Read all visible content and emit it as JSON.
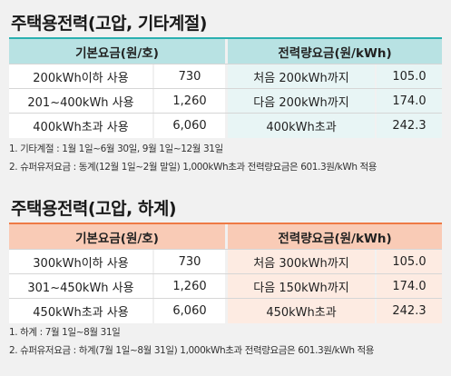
{
  "sections": [
    {
      "title": "주택용전력(고압, 기타계절)",
      "headers": {
        "basic": "기본요금(원/호)",
        "energy": "전력량요금(원/kWh)"
      },
      "rows": [
        {
          "basic_label": "200kWh이하 사용",
          "basic_value": "730",
          "energy_label": "처음 200kWh까지",
          "energy_value": "105.0"
        },
        {
          "basic_label": "201~400kWh 사용",
          "basic_value": "1,260",
          "energy_label": "다음 200kWh까지",
          "energy_value": "174.0"
        },
        {
          "basic_label": "400kWh초과 사용",
          "basic_value": "6,060",
          "energy_label": "400kWh초과",
          "energy_value": "242.3"
        }
      ],
      "notes": [
        "1. 기타계절 : 1월 1일~6월 30일, 9월 1일~12월 31일",
        "2. 슈퍼유저요금 : 동계(12월 1일~2월 말일) 1,000kWh초과 전력량요금은 601.3원/kWh 적용"
      ]
    },
    {
      "title": "주택용전력(고압, 하계)",
      "headers": {
        "basic": "기본요금(원/호)",
        "energy": "전력량요금(원/kWh)"
      },
      "rows": [
        {
          "basic_label": "300kWh이하 사용",
          "basic_value": "730",
          "energy_label": "처음 300kWh까지",
          "energy_value": "105.0"
        },
        {
          "basic_label": "301~450kWh 사용",
          "basic_value": "1,260",
          "energy_label": "다음 150kWh까지",
          "energy_value": "174.0"
        },
        {
          "basic_label": "450kWh초과 사용",
          "basic_value": "6,060",
          "energy_label": "450kWh초과",
          "energy_value": "242.3"
        }
      ],
      "notes": [
        "1. 하계 : 7월 1일~8월 31일",
        "2. 슈퍼유저요금 : 하계(7월 1일~8월 31일) 1,000kWh초과 전력량요금은 601.3원/kWh 적용"
      ]
    }
  ],
  "colors": {
    "offseason_accent": "#2bb0b0",
    "offseason_header": "#b8e2e3",
    "summer_accent": "#ee7a45",
    "summer_header": "#f9cbb6"
  }
}
